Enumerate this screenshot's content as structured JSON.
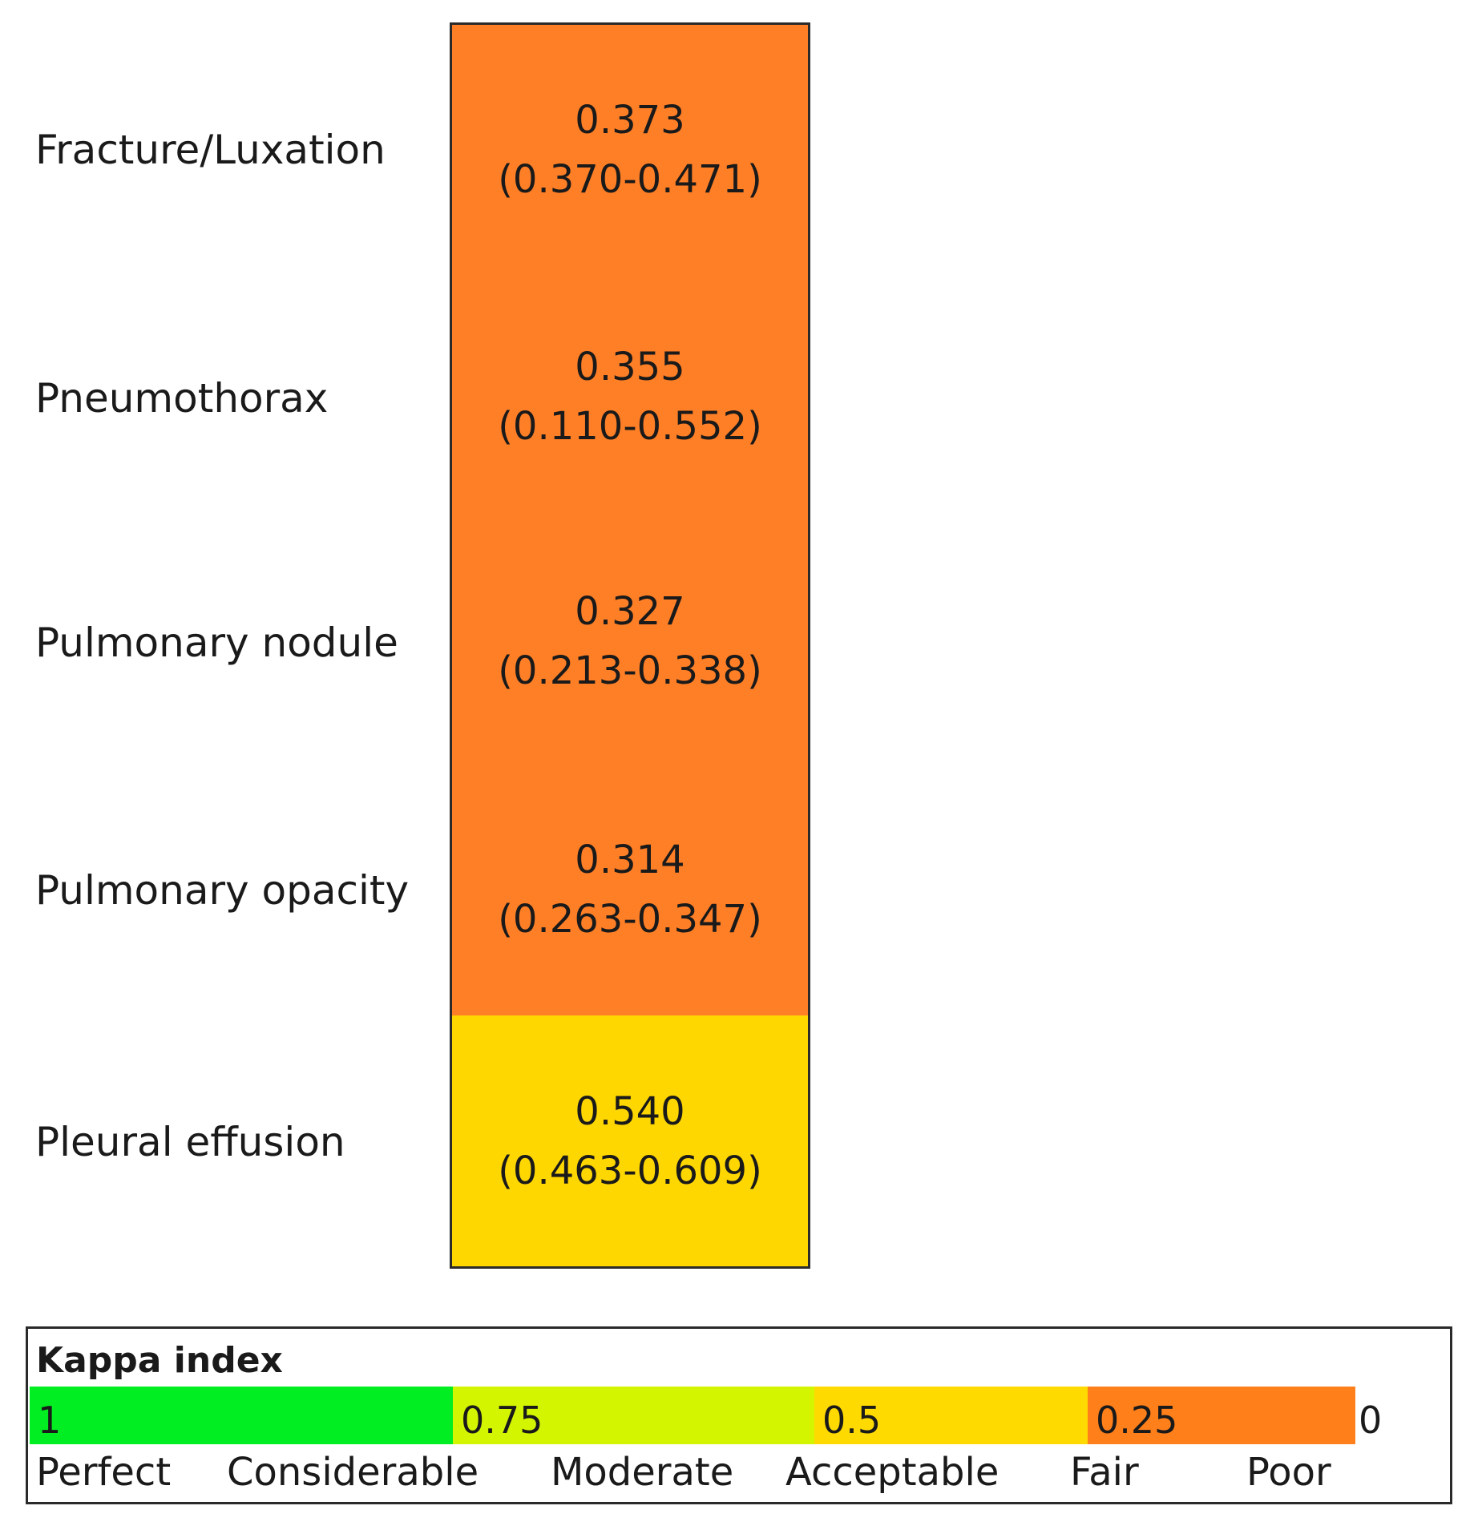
{
  "chart_data": {
    "type": "heatmap",
    "rows": [
      {
        "label": "Fracture/Luxation",
        "value": "0.373",
        "ci": "(0.370-0.471)",
        "color": "#FF7F27"
      },
      {
        "label": "Pneumothorax",
        "value": "0.355",
        "ci": "(0.110-0.552)",
        "color": "#FF7F27"
      },
      {
        "label": "Pulmonary nodule",
        "value": "0.327",
        "ci": "(0.213-0.338)",
        "color": "#FF7F27"
      },
      {
        "label": "Pulmonary opacity",
        "value": "0.314",
        "ci": "(0.263-0.347)",
        "color": "#FF7F27"
      },
      {
        "label": "Pleural effusion",
        "value": "0.540",
        "ci": "(0.463-0.609)",
        "color": "#FFD700"
      }
    ]
  },
  "legend": {
    "title": "Kappa index",
    "bands": [
      {
        "value": "1",
        "color": "#00EE22"
      },
      {
        "value": "0.75",
        "color": "#D4F500"
      },
      {
        "value": "0.5",
        "color": "#FFDA00"
      },
      {
        "value": "0.25",
        "color": "#FF7F1A"
      }
    ],
    "end_value": "0",
    "categories": [
      "Perfect",
      "Considerable",
      "Moderate",
      "Acceptable",
      "Fair",
      "Poor"
    ]
  }
}
